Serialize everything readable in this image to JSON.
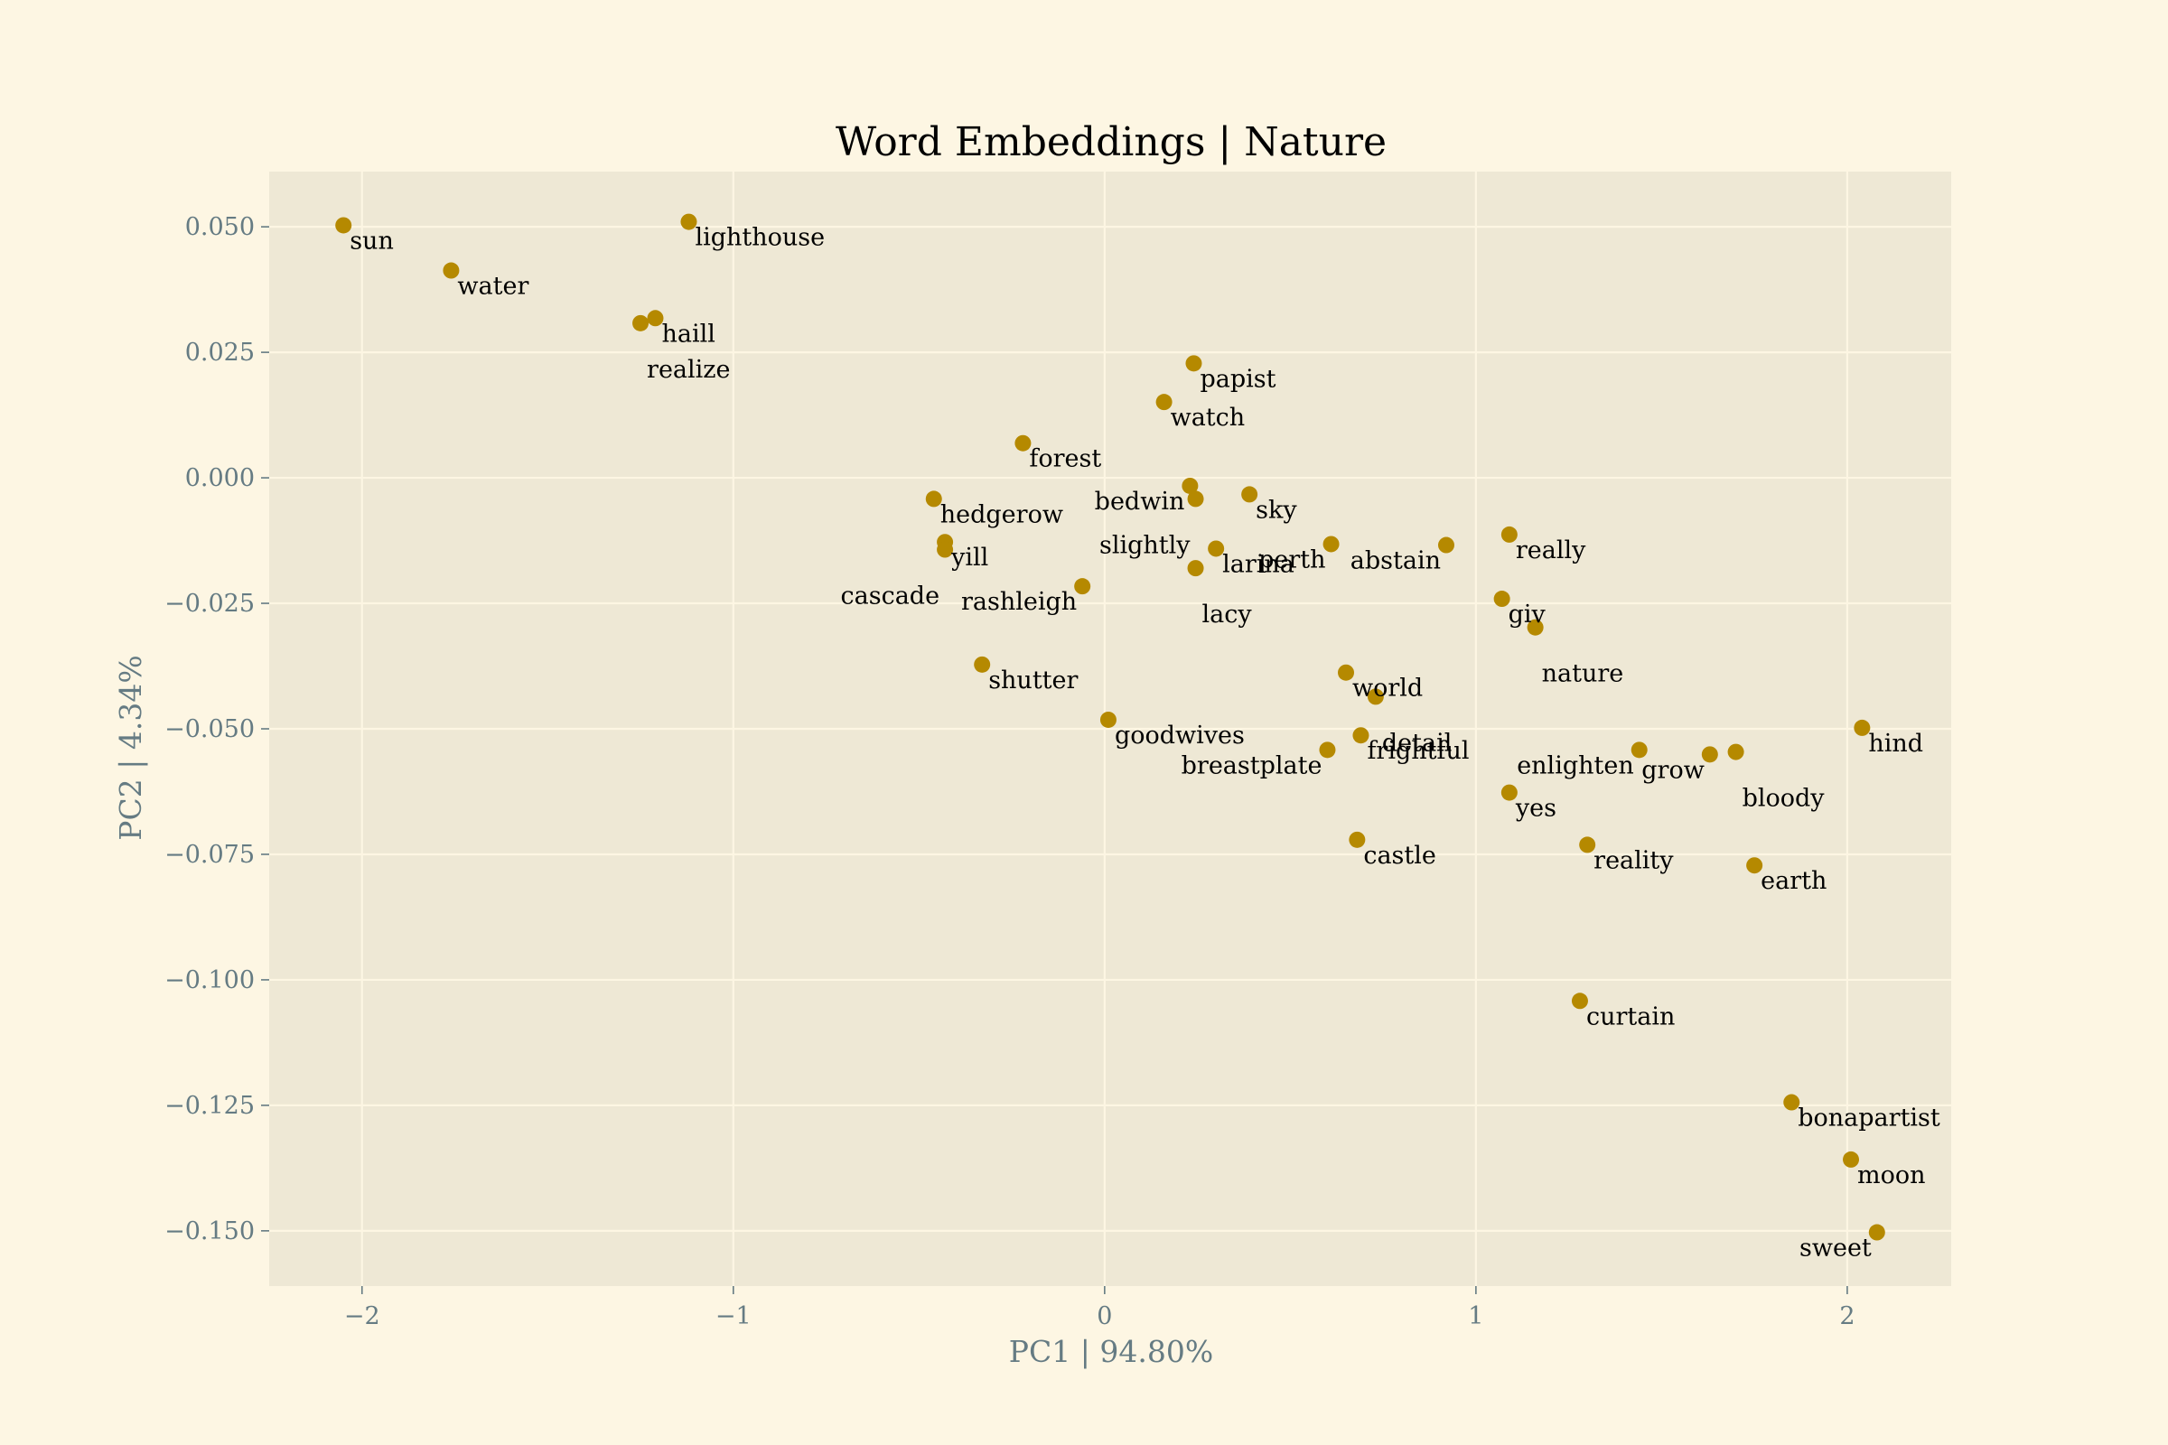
{
  "chart_data": {
    "type": "scatter",
    "title": "Word Embeddings | Nature",
    "xlabel": "PC1 | 94.80%",
    "ylabel": "PC2 | 4.34%",
    "xlim": [
      -2.25,
      2.28
    ],
    "ylim": [
      -0.161,
      0.061
    ],
    "grid": true,
    "colors": {
      "figure_bg": "#fdf6e3",
      "axes_bg": "#eee8d5",
      "grid": "#fdf6e3",
      "point": "#b58900",
      "tick_label": "#657b83",
      "axis_label": "#657b83",
      "text": "#000000"
    },
    "x_ticks": [
      {
        "value": -2,
        "label": "−2"
      },
      {
        "value": -1,
        "label": "−1"
      },
      {
        "value": 0,
        "label": "0"
      },
      {
        "value": 1,
        "label": "1"
      },
      {
        "value": 2,
        "label": "2"
      }
    ],
    "y_ticks": [
      {
        "value": 0.05,
        "label": "0.050"
      },
      {
        "value": 0.025,
        "label": "0.025"
      },
      {
        "value": 0.0,
        "label": "0.000"
      },
      {
        "value": -0.025,
        "label": "−0.025"
      },
      {
        "value": -0.05,
        "label": "−0.050"
      },
      {
        "value": -0.075,
        "label": "−0.075"
      },
      {
        "value": -0.1,
        "label": "−0.100"
      },
      {
        "value": -0.125,
        "label": "−0.125"
      },
      {
        "value": -0.15,
        "label": "−0.150"
      }
    ],
    "points": [
      {
        "label": "sun",
        "x": -2.05,
        "y": 0.0503,
        "label_side": "right"
      },
      {
        "label": "water",
        "x": -1.76,
        "y": 0.0413,
        "label_side": "right"
      },
      {
        "label": "lighthouse",
        "x": -1.12,
        "y": 0.051,
        "label_side": "right"
      },
      {
        "label": "haill",
        "x": -1.21,
        "y": 0.0318,
        "label_side": "right"
      },
      {
        "label": "realize",
        "x": -1.25,
        "y": 0.0308,
        "label_side": "right-low"
      },
      {
        "label": "papist",
        "x": 0.24,
        "y": 0.0228,
        "label_side": "right"
      },
      {
        "label": "watch",
        "x": 0.16,
        "y": 0.0151,
        "label_side": "right"
      },
      {
        "label": "forest",
        "x": -0.22,
        "y": 0.0069,
        "label_side": "right"
      },
      {
        "label": "hedgerow",
        "x": -0.46,
        "y": -0.0042,
        "label_side": "right"
      },
      {
        "label": "bedwin",
        "x": 0.23,
        "y": -0.0016,
        "label_side": "left"
      },
      {
        "label": "slightly",
        "x": 0.245,
        "y": -0.0042,
        "label_side": "left-low"
      },
      {
        "label": "sky",
        "x": 0.39,
        "y": -0.0033,
        "label_side": "right"
      },
      {
        "label": "yill",
        "x": -0.43,
        "y": -0.0128,
        "label_side": "right"
      },
      {
        "label": "cascade",
        "x": -0.43,
        "y": -0.0143,
        "label_side": "left-low"
      },
      {
        "label": "rashleigh",
        "x": -0.06,
        "y": -0.0216,
        "label_side": "left"
      },
      {
        "label": "larina",
        "x": 0.3,
        "y": -0.0141,
        "label_side": "right"
      },
      {
        "label": "lacy",
        "x": 0.245,
        "y": -0.018,
        "label_side": "right-low"
      },
      {
        "label": "perth",
        "x": 0.61,
        "y": -0.0132,
        "label_side": "left"
      },
      {
        "label": "abstain",
        "x": 0.92,
        "y": -0.0134,
        "label_side": "left"
      },
      {
        "label": "really",
        "x": 1.09,
        "y": -0.0113,
        "label_side": "right"
      },
      {
        "label": "giv",
        "x": 1.07,
        "y": -0.0241,
        "label_side": "right"
      },
      {
        "label": "nature",
        "x": 1.16,
        "y": -0.0298,
        "label_side": "right-low"
      },
      {
        "label": "shutter",
        "x": -0.33,
        "y": -0.0372,
        "label_side": "right"
      },
      {
        "label": "world",
        "x": 0.65,
        "y": -0.0388,
        "label_side": "right"
      },
      {
        "label": "detail",
        "x": 0.73,
        "y": -0.0436,
        "label_side": "right-low"
      },
      {
        "label": "goodwives",
        "x": 0.01,
        "y": -0.0482,
        "label_side": "right"
      },
      {
        "label": "frightful",
        "x": 0.69,
        "y": -0.0513,
        "label_side": "right"
      },
      {
        "label": "breastplate",
        "x": 0.6,
        "y": -0.0542,
        "label_side": "left"
      },
      {
        "label": "enlighten",
        "x": 1.44,
        "y": -0.0542,
        "label_side": "left"
      },
      {
        "label": "grow",
        "x": 1.63,
        "y": -0.0551,
        "label_side": "left"
      },
      {
        "label": "bloody",
        "x": 1.7,
        "y": -0.0546,
        "label_side": "right-low"
      },
      {
        "label": "hind",
        "x": 2.04,
        "y": -0.0498,
        "label_side": "right"
      },
      {
        "label": "yes",
        "x": 1.09,
        "y": -0.0627,
        "label_side": "right"
      },
      {
        "label": "castle",
        "x": 0.68,
        "y": -0.0721,
        "label_side": "right"
      },
      {
        "label": "reality",
        "x": 1.3,
        "y": -0.0731,
        "label_side": "right"
      },
      {
        "label": "earth",
        "x": 1.75,
        "y": -0.0772,
        "label_side": "right"
      },
      {
        "label": "curtain",
        "x": 1.28,
        "y": -0.1042,
        "label_side": "right"
      },
      {
        "label": "bonapartist",
        "x": 1.85,
        "y": -0.1244,
        "label_side": "right"
      },
      {
        "label": "moon",
        "x": 2.01,
        "y": -0.1358,
        "label_side": "right"
      },
      {
        "label": "sweet",
        "x": 2.08,
        "y": -0.1503,
        "label_side": "left"
      }
    ]
  }
}
